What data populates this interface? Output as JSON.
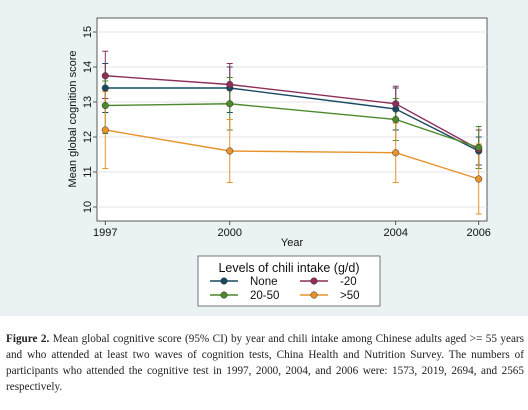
{
  "chart_data": {
    "type": "line",
    "xlabel": "Year",
    "ylabel": "Mean global cognition score",
    "x": [
      1997,
      2000,
      2004,
      2006
    ],
    "x_ticks": [
      "1997",
      "2000",
      "2004",
      "2006"
    ],
    "ylim": [
      9.6,
      15.4
    ],
    "y_ticks": [
      "10",
      "11",
      "12",
      "13",
      "14",
      "15"
    ],
    "grid": true,
    "legend": {
      "title": "Levels of chili intake (g/d)",
      "placement": "bottom",
      "entries": [
        "None",
        "-20",
        "20-50",
        ">50"
      ]
    },
    "series": [
      {
        "name": "None",
        "color": "#1a4a63",
        "values": [
          13.4,
          13.4,
          12.8,
          11.6
        ],
        "ci_low": [
          12.7,
          12.7,
          12.2,
          11.2
        ],
        "ci_high": [
          14.1,
          14.0,
          13.4,
          12.0
        ]
      },
      {
        "name": "-20",
        "color": "#8e2f5a",
        "values": [
          13.75,
          13.5,
          12.95,
          11.65
        ],
        "ci_low": [
          13.1,
          12.9,
          12.5,
          11.1
        ],
        "ci_high": [
          14.45,
          14.1,
          13.45,
          12.2
        ]
      },
      {
        "name": "20-50",
        "color": "#4e8a2c",
        "values": [
          12.9,
          12.95,
          12.5,
          11.7
        ],
        "ci_low": [
          12.1,
          12.2,
          11.9,
          11.1
        ],
        "ci_high": [
          13.6,
          13.7,
          13.1,
          12.3
        ]
      },
      {
        "name": ">50",
        "color": "#e8922b",
        "values": [
          12.2,
          11.6,
          11.55,
          10.8
        ],
        "ci_low": [
          11.1,
          10.7,
          10.7,
          9.8
        ],
        "ci_high": [
          13.3,
          12.5,
          12.4,
          11.8
        ]
      }
    ]
  },
  "caption": {
    "label": "Figure 2.",
    "text": " Mean global cognitive score (95% CI) by year and chili intake among Chinese adults aged >= 55 years and who attended at least two waves of cognition tests, China Health and Nutrition Survey. The numbers of participants who attended the cognitive test in 1997, 2000, 2004, and 2006 were: 1573, 2019, 2694, and 2565 respectively."
  }
}
